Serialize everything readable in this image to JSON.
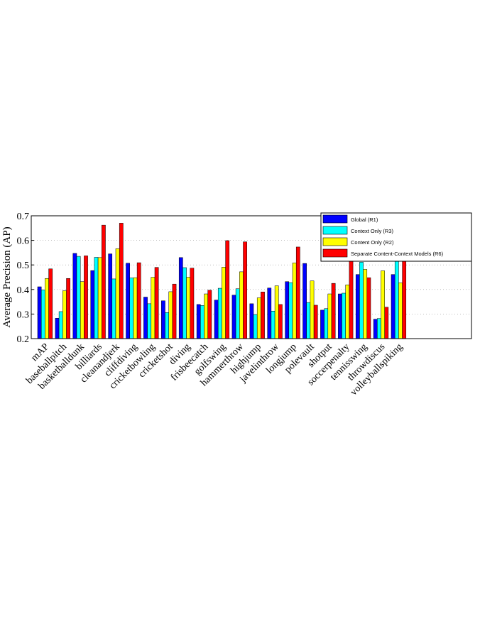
{
  "chart_data": {
    "type": "bar",
    "ylabel": "Average Precision (AP)",
    "xlabel": "",
    "title": "",
    "ylim": [
      0.2,
      0.7
    ],
    "yticks": [
      "0.2",
      "0.3",
      "0.4",
      "0.5",
      "0.6",
      "0.7"
    ],
    "grid": "dotted",
    "legend_position": "top-right",
    "categories": [
      "mAP",
      "baseballpitch",
      "basketballdunk",
      "billiards",
      "cleanandjerk",
      "cliffdiving",
      "cricketbowling",
      "cricketshot",
      "diving",
      "frisbeecatch",
      "golfswing",
      "hammerthrow",
      "highjump",
      "javelinthrow",
      "longjump",
      "polevault",
      "shotput",
      "soccerpenalty",
      "tennisswing",
      "throwdiscus",
      "volleyballspiking"
    ],
    "series": [
      {
        "name": "Global (R1)",
        "color": "#0000ff",
        "values": [
          0.411,
          0.283,
          0.547,
          0.477,
          0.545,
          0.507,
          0.369,
          0.354,
          0.53,
          0.339,
          0.357,
          0.377,
          0.342,
          0.406,
          0.432,
          0.506,
          0.316,
          0.382,
          0.461,
          0.279,
          0.461
        ]
      },
      {
        "name": "Context Only (R3)",
        "color": "#00ffff",
        "values": [
          0.398,
          0.31,
          0.535,
          0.531,
          0.443,
          0.447,
          0.342,
          0.306,
          0.489,
          0.335,
          0.405,
          0.403,
          0.298,
          0.312,
          0.428,
          0.347,
          0.322,
          0.385,
          0.511,
          0.282,
          0.516
        ]
      },
      {
        "name": "Content Only (R2)",
        "color": "#ffff00",
        "values": [
          0.445,
          0.395,
          0.432,
          0.53,
          0.566,
          0.448,
          0.45,
          0.391,
          0.45,
          0.382,
          0.491,
          0.472,
          0.366,
          0.415,
          0.508,
          0.435,
          0.382,
          0.419,
          0.482,
          0.476,
          0.427
        ]
      },
      {
        "name": "Separate Content-Context Models (R6)",
        "color": "#ff0000",
        "values": [
          0.484,
          0.445,
          0.537,
          0.662,
          0.67,
          0.509,
          0.49,
          0.422,
          0.487,
          0.397,
          0.599,
          0.594,
          0.39,
          0.339,
          0.573,
          0.336,
          0.425,
          0.53,
          0.448,
          0.328,
          0.515
        ]
      }
    ]
  }
}
